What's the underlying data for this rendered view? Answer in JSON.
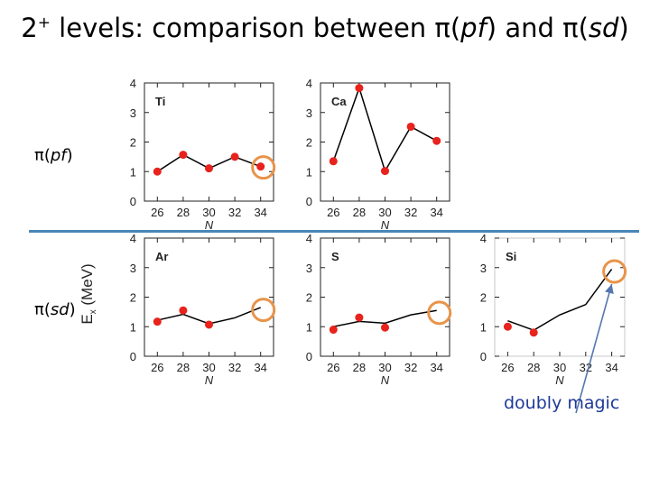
{
  "title": {
    "pre": "2",
    "sup": "+",
    "mid": " levels: comparison between π(",
    "pf": "pf",
    "and": ") and π(",
    "sd": "sd",
    "end": ")"
  },
  "row_labels": [
    {
      "pre": "π(",
      "it": "pf",
      "post": ")"
    },
    {
      "pre": "π(",
      "it": "sd",
      "post": ")"
    }
  ],
  "ylabel": {
    "e": "E",
    "sub": "x",
    "unit": " (MeV)"
  },
  "annotation": "doubly magic",
  "colors": {
    "points": "#e8221c",
    "line": "#000000",
    "circle": "#e8944a",
    "divider": "#4a86b6",
    "arrow": "#5577b0",
    "annotation": "#1f3a99"
  },
  "chart_data": [
    {
      "type": "line",
      "label": "Ti",
      "xlabel": "N",
      "ylim": [
        0,
        4
      ],
      "x_ticks": [
        26,
        28,
        30,
        32,
        34
      ],
      "y_ticks": [
        0,
        1,
        2,
        3,
        4
      ],
      "series": [
        {
          "values": [
            {
              "x": 26,
              "y": 1.0
            },
            {
              "x": 28,
              "y": 1.57
            },
            {
              "x": 30,
              "y": 1.11
            },
            {
              "x": 32,
              "y": 1.5
            },
            {
              "x": 34,
              "y": 1.17
            }
          ]
        }
      ],
      "highlight": {
        "x": 34,
        "y": 1.17
      }
    },
    {
      "type": "line",
      "label": "Ca",
      "xlabel": "N",
      "ylim": [
        0,
        4
      ],
      "x_ticks": [
        26,
        28,
        30,
        32,
        34
      ],
      "y_ticks": [
        0,
        1,
        2,
        3,
        4
      ],
      "series": [
        {
          "values": [
            {
              "x": 26,
              "y": 1.35
            },
            {
              "x": 28,
              "y": 3.83
            },
            {
              "x": 30,
              "y": 1.02
            },
            {
              "x": 32,
              "y": 2.52
            },
            {
              "x": 34,
              "y": 2.04
            }
          ]
        }
      ]
    },
    {
      "type": "line",
      "label": "Ar",
      "xlabel": "N",
      "ylim": [
        0,
        4
      ],
      "x_ticks": [
        26,
        28,
        30,
        32,
        34
      ],
      "y_ticks": [
        0,
        1,
        2,
        3,
        4
      ],
      "points": [
        {
          "x": 26,
          "y": 1.17
        },
        {
          "x": 28,
          "y": 1.55
        },
        {
          "x": 30,
          "y": 1.07
        }
      ],
      "line": [
        {
          "x": 26,
          "y": 1.22
        },
        {
          "x": 28,
          "y": 1.42
        },
        {
          "x": 30,
          "y": 1.1
        },
        {
          "x": 32,
          "y": 1.3
        },
        {
          "x": 34,
          "y": 1.65
        }
      ],
      "highlight": {
        "x": 34,
        "y": 1.6
      }
    },
    {
      "type": "line",
      "label": "S",
      "xlabel": "N",
      "ylim": [
        0,
        4
      ],
      "x_ticks": [
        26,
        28,
        30,
        32,
        34
      ],
      "y_ticks": [
        0,
        1,
        2,
        3,
        4
      ],
      "points": [
        {
          "x": 26,
          "y": 0.9
        },
        {
          "x": 28,
          "y": 1.31
        },
        {
          "x": 30,
          "y": 0.97
        }
      ],
      "line": [
        {
          "x": 26,
          "y": 1.0
        },
        {
          "x": 28,
          "y": 1.18
        },
        {
          "x": 30,
          "y": 1.12
        },
        {
          "x": 32,
          "y": 1.4
        },
        {
          "x": 34,
          "y": 1.55
        }
      ],
      "highlight": {
        "x": 34,
        "y": 1.5
      }
    },
    {
      "type": "line",
      "label": "Si",
      "xlabel": "N",
      "ylim": [
        0,
        4
      ],
      "x_ticks": [
        26,
        28,
        30,
        32,
        34
      ],
      "y_ticks": [
        0,
        1,
        2,
        3,
        4
      ],
      "points": [
        {
          "x": 26,
          "y": 1.0
        },
        {
          "x": 28,
          "y": 0.8
        }
      ],
      "line": [
        {
          "x": 26,
          "y": 1.2
        },
        {
          "x": 28,
          "y": 0.88
        },
        {
          "x": 30,
          "y": 1.4
        },
        {
          "x": 32,
          "y": 1.75
        },
        {
          "x": 34,
          "y": 2.95
        }
      ],
      "highlight": {
        "x": 34,
        "y": 2.9
      }
    }
  ]
}
